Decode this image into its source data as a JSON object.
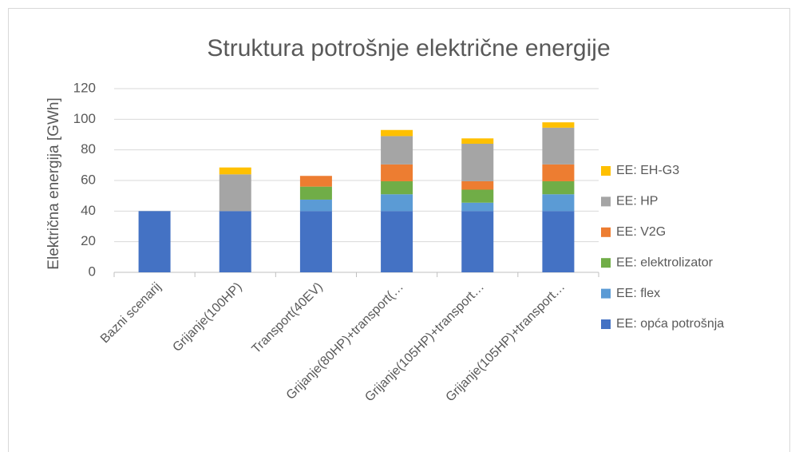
{
  "chart_data": {
    "type": "stacked_bar",
    "title": "Struktura potrošnje električne energije",
    "y_label": "Električna energija [GWh]",
    "categories": [
      "Bazni scenarij",
      "Grijanje(100HP)",
      "Transport(40EV)",
      "Grijanje(80HP)+transport(…",
      "Grijanje(105HP)+transport…",
      "Grijanje(105HP)+transport…"
    ],
    "series": [
      {
        "name": "EE: opća potrošnja",
        "color": "#4472c4",
        "values": [
          40,
          40,
          40,
          40,
          40,
          40
        ]
      },
      {
        "name": "EE: flex",
        "color": "#5b9bd5",
        "values": [
          0,
          0,
          7.5,
          11,
          5.5,
          11
        ]
      },
      {
        "name": "EE: elektrolizator",
        "color": "#70ad47",
        "values": [
          0,
          0,
          8.5,
          8.5,
          8.5,
          8.5
        ]
      },
      {
        "name": "EE: V2G",
        "color": "#ed7d31",
        "values": [
          0,
          0,
          7,
          11,
          5.5,
          11
        ]
      },
      {
        "name": "EE: HP",
        "color": "#a5a5a5",
        "values": [
          0,
          24,
          0,
          18.5,
          24.5,
          24
        ]
      },
      {
        "name": "EE: EH-G3",
        "color": "#ffc000",
        "values": [
          0,
          4.5,
          0,
          4,
          3.5,
          3.5
        ]
      }
    ],
    "ylim": [
      0,
      120
    ],
    "yticks": [
      0,
      20,
      40,
      60,
      80,
      100,
      120
    ],
    "grid": true,
    "legend": "right"
  }
}
